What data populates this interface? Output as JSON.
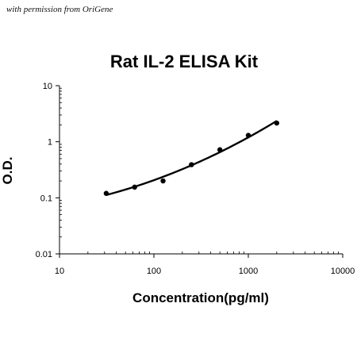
{
  "credit_text": "with permission from OriGene",
  "chart_data": {
    "type": "scatter",
    "title": "Rat IL-2 ELISA Kit",
    "xlabel": "Concentration(pg/ml)",
    "ylabel": "O.D.",
    "x_scale": "log",
    "y_scale": "log",
    "xlim": [
      10,
      10000
    ],
    "ylim": [
      0.01,
      10
    ],
    "x_ticks": [
      "10",
      "100",
      "1000",
      "10000"
    ],
    "y_ticks": [
      "0.01",
      "0.1",
      "1",
      "10"
    ],
    "grid": false,
    "legend": "none",
    "series": [
      {
        "x": [
          31.25,
          62.5,
          125,
          250,
          500,
          1000,
          2000
        ],
        "y": [
          0.12,
          0.155,
          0.2,
          0.39,
          0.72,
          1.3,
          2.15
        ],
        "marker": "circle",
        "fit_line": true
      }
    ],
    "colors": {
      "points": "#000000",
      "line": "#000000",
      "axes": "#000000"
    }
  }
}
